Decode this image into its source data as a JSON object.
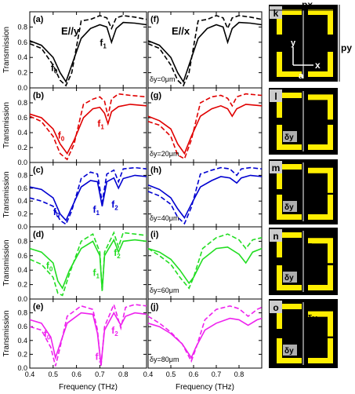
{
  "axis": {
    "ylabel": "Transmission",
    "xlabel": "Frequency (THz)",
    "yticks": [
      "0.8",
      "0.6",
      "0.4",
      "0.2",
      "0.0"
    ],
    "xticks_left": [
      "0.4",
      "0.5",
      "0.6",
      "0.7",
      "0.8"
    ],
    "xticks_right": [
      "0.4",
      "0.5",
      "0.6",
      "0.7",
      "0.8"
    ]
  },
  "legend": {
    "e_y": "E//y",
    "e_x": "E//x"
  },
  "rows": [
    {
      "label_left": "(a)",
      "label_right": "(f)",
      "delta": "δy=0μm",
      "color": "#000000",
      "res_left": [
        {
          "text": "f0",
          "sub": ""
        },
        {
          "text": "f1",
          "sub": ""
        }
      ]
    },
    {
      "label_left": "(b)",
      "label_right": "(g)",
      "delta": "δy=20μm",
      "color": "#e00000",
      "res_left": [
        {
          "text": "f0"
        },
        {
          "text": "f1"
        }
      ]
    },
    {
      "label_left": "(c)",
      "label_right": "(h)",
      "delta": "δy=40μm",
      "color": "#0000d0",
      "res_left": [
        {
          "text": "f0"
        },
        {
          "text": "f1"
        },
        {
          "text": "f2"
        }
      ]
    },
    {
      "label_left": "(d)",
      "label_right": "(i)",
      "delta": "δy=60μm",
      "color": "#22dd22",
      "res_left": [
        {
          "text": "f0"
        },
        {
          "text": "f1"
        },
        {
          "text": "f2"
        }
      ]
    },
    {
      "label_left": "(e)",
      "label_right": "(j)",
      "delta": "δy=80μm",
      "color": "#ee22ee",
      "res_left": [
        {
          "text": "f0"
        },
        {
          "text": "f1"
        },
        {
          "text": "f2"
        }
      ]
    }
  ],
  "unit_cells": [
    {
      "label": "k",
      "texts": {
        "px": "px",
        "py": "py",
        "a": "a",
        "x": "x",
        "y": "y"
      }
    },
    {
      "label": "l",
      "dy": "δy"
    },
    {
      "label": "m",
      "dy": "δy"
    },
    {
      "label": "n",
      "dy": "δy"
    },
    {
      "label": "o",
      "dy": "δy"
    }
  ],
  "chart_data": [
    {
      "type": "line",
      "title": "",
      "xlabel": "Frequency (THz)",
      "ylabel": "Transmission",
      "xlim": [
        0.4,
        0.9
      ],
      "ylim": [
        0.0,
        1.0
      ],
      "panels": [
        {
          "panel": "(a)",
          "polarization": "E//y",
          "delta_y": "δy=0μm",
          "series": [
            {
              "style": "solid",
              "x": [
                0.4,
                0.45,
                0.5,
                0.53,
                0.555,
                0.58,
                0.62,
                0.66,
                0.7,
                0.73,
                0.75,
                0.77,
                0.8,
                0.85,
                0.9
              ],
              "y": [
                0.62,
                0.56,
                0.4,
                0.2,
                0.08,
                0.3,
                0.65,
                0.78,
                0.83,
                0.8,
                0.6,
                0.78,
                0.86,
                0.85,
                0.83
              ]
            },
            {
              "style": "dashed",
              "x": [
                0.4,
                0.45,
                0.5,
                0.53,
                0.555,
                0.58,
                0.62,
                0.66,
                0.7,
                0.73,
                0.75,
                0.77,
                0.8,
                0.85,
                0.9
              ],
              "y": [
                0.58,
                0.52,
                0.3,
                0.1,
                0.03,
                0.2,
                0.88,
                0.9,
                0.95,
                0.92,
                0.78,
                0.92,
                0.95,
                0.93,
                0.9
              ]
            }
          ]
        },
        {
          "panel": "(b)",
          "polarization": "E//y",
          "delta_y": "δy=20μm",
          "series": [
            {
              "style": "solid",
              "x": [
                0.4,
                0.45,
                0.5,
                0.53,
                0.56,
                0.59,
                0.63,
                0.67,
                0.7,
                0.72,
                0.735,
                0.75,
                0.78,
                0.83,
                0.9
              ],
              "y": [
                0.65,
                0.6,
                0.45,
                0.25,
                0.12,
                0.3,
                0.6,
                0.72,
                0.74,
                0.66,
                0.52,
                0.68,
                0.75,
                0.78,
                0.76
              ]
            },
            {
              "style": "dashed",
              "x": [
                0.4,
                0.45,
                0.5,
                0.53,
                0.56,
                0.59,
                0.63,
                0.67,
                0.7,
                0.72,
                0.735,
                0.75,
                0.78,
                0.83,
                0.9
              ],
              "y": [
                0.62,
                0.55,
                0.35,
                0.12,
                0.04,
                0.25,
                0.78,
                0.85,
                0.88,
                0.82,
                0.62,
                0.85,
                0.92,
                0.9,
                0.88
              ]
            }
          ]
        },
        {
          "panel": "(c)",
          "polarization": "E//y",
          "delta_y": "δy=40μm",
          "series": [
            {
              "style": "solid",
              "x": [
                0.4,
                0.45,
                0.5,
                0.53,
                0.555,
                0.58,
                0.62,
                0.66,
                0.69,
                0.71,
                0.73,
                0.76,
                0.78,
                0.8,
                0.85,
                0.9
              ],
              "y": [
                0.62,
                0.58,
                0.45,
                0.2,
                0.1,
                0.3,
                0.62,
                0.72,
                0.7,
                0.32,
                0.7,
                0.76,
                0.6,
                0.75,
                0.8,
                0.78
              ]
            },
            {
              "style": "dashed",
              "x": [
                0.4,
                0.45,
                0.5,
                0.53,
                0.555,
                0.58,
                0.62,
                0.66,
                0.69,
                0.71,
                0.73,
                0.76,
                0.78,
                0.8,
                0.85,
                0.9
              ],
              "y": [
                0.45,
                0.4,
                0.32,
                0.1,
                0.04,
                0.25,
                0.75,
                0.85,
                0.82,
                0.38,
                0.82,
                0.88,
                0.7,
                0.9,
                0.92,
                0.9
              ]
            }
          ]
        },
        {
          "panel": "(d)",
          "polarization": "E//y",
          "delta_y": "δy=60μm",
          "series": [
            {
              "style": "solid",
              "x": [
                0.4,
                0.45,
                0.5,
                0.52,
                0.54,
                0.57,
                0.62,
                0.67,
                0.7,
                0.71,
                0.72,
                0.76,
                0.78,
                0.8,
                0.85,
                0.9
              ],
              "y": [
                0.7,
                0.65,
                0.5,
                0.25,
                0.15,
                0.4,
                0.7,
                0.8,
                0.6,
                0.12,
                0.6,
                0.82,
                0.65,
                0.8,
                0.82,
                0.8
              ]
            },
            {
              "style": "dashed",
              "x": [
                0.4,
                0.45,
                0.5,
                0.52,
                0.54,
                0.57,
                0.62,
                0.67,
                0.7,
                0.71,
                0.72,
                0.76,
                0.78,
                0.8,
                0.85,
                0.9
              ],
              "y": [
                0.55,
                0.48,
                0.3,
                0.08,
                0.05,
                0.35,
                0.8,
                0.9,
                0.65,
                0.1,
                0.65,
                0.92,
                0.72,
                0.92,
                0.9,
                0.88
              ]
            }
          ]
        },
        {
          "panel": "(e)",
          "polarization": "E//y",
          "delta_y": "δy=80μm",
          "series": [
            {
              "style": "solid",
              "x": [
                0.4,
                0.45,
                0.49,
                0.51,
                0.53,
                0.56,
                0.62,
                0.67,
                0.69,
                0.705,
                0.72,
                0.76,
                0.79,
                0.81,
                0.85,
                0.9
              ],
              "y": [
                0.7,
                0.65,
                0.45,
                0.15,
                0.35,
                0.65,
                0.8,
                0.78,
                0.5,
                0.05,
                0.55,
                0.8,
                0.62,
                0.75,
                0.8,
                0.78
              ]
            },
            {
              "style": "dashed",
              "x": [
                0.4,
                0.45,
                0.49,
                0.51,
                0.53,
                0.56,
                0.62,
                0.67,
                0.69,
                0.705,
                0.72,
                0.76,
                0.79,
                0.81,
                0.85,
                0.9
              ],
              "y": [
                0.6,
                0.55,
                0.3,
                0.03,
                0.3,
                0.75,
                0.9,
                0.85,
                0.55,
                0.02,
                0.6,
                0.92,
                0.58,
                0.88,
                0.92,
                0.9
              ]
            }
          ]
        },
        {
          "panel": "(f)",
          "polarization": "E//x",
          "delta_y": "δy=0μm",
          "series": [
            {
              "style": "solid",
              "x": [
                0.4,
                0.45,
                0.5,
                0.53,
                0.555,
                0.58,
                0.62,
                0.66,
                0.7,
                0.73,
                0.75,
                0.77,
                0.8,
                0.85,
                0.9
              ],
              "y": [
                0.62,
                0.56,
                0.4,
                0.2,
                0.08,
                0.3,
                0.65,
                0.78,
                0.83,
                0.8,
                0.6,
                0.78,
                0.86,
                0.85,
                0.83
              ]
            },
            {
              "style": "dashed",
              "x": [
                0.4,
                0.45,
                0.5,
                0.53,
                0.555,
                0.58,
                0.62,
                0.66,
                0.7,
                0.73,
                0.75,
                0.77,
                0.8,
                0.85,
                0.9
              ],
              "y": [
                0.58,
                0.52,
                0.3,
                0.1,
                0.03,
                0.2,
                0.88,
                0.9,
                0.95,
                0.92,
                0.78,
                0.92,
                0.95,
                0.93,
                0.9
              ]
            }
          ]
        },
        {
          "panel": "(g)",
          "polarization": "E//x",
          "delta_y": "δy=20μm",
          "series": [
            {
              "style": "solid",
              "x": [
                0.4,
                0.45,
                0.5,
                0.53,
                0.56,
                0.59,
                0.63,
                0.68,
                0.72,
                0.75,
                0.77,
                0.79,
                0.83,
                0.9
              ],
              "y": [
                0.62,
                0.56,
                0.45,
                0.25,
                0.12,
                0.35,
                0.62,
                0.72,
                0.76,
                0.72,
                0.62,
                0.72,
                0.78,
                0.76
              ]
            },
            {
              "style": "dashed",
              "x": [
                0.4,
                0.45,
                0.5,
                0.53,
                0.56,
                0.59,
                0.63,
                0.68,
                0.72,
                0.75,
                0.77,
                0.79,
                0.83,
                0.9
              ],
              "y": [
                0.55,
                0.5,
                0.35,
                0.1,
                0.05,
                0.3,
                0.8,
                0.88,
                0.9,
                0.86,
                0.76,
                0.88,
                0.92,
                0.9
              ]
            }
          ]
        },
        {
          "panel": "(h)",
          "polarization": "E//x",
          "delta_y": "δy=40μm",
          "series": [
            {
              "style": "solid",
              "x": [
                0.4,
                0.45,
                0.5,
                0.53,
                0.56,
                0.59,
                0.63,
                0.68,
                0.72,
                0.76,
                0.79,
                0.81,
                0.85,
                0.9
              ],
              "y": [
                0.65,
                0.58,
                0.45,
                0.28,
                0.14,
                0.35,
                0.62,
                0.72,
                0.78,
                0.76,
                0.68,
                0.76,
                0.8,
                0.78
              ]
            },
            {
              "style": "dashed",
              "x": [
                0.4,
                0.45,
                0.5,
                0.53,
                0.56,
                0.59,
                0.63,
                0.68,
                0.72,
                0.76,
                0.79,
                0.81,
                0.85,
                0.9
              ],
              "y": [
                0.55,
                0.48,
                0.35,
                0.15,
                0.05,
                0.3,
                0.82,
                0.88,
                0.92,
                0.9,
                0.8,
                0.9,
                0.92,
                0.9
              ]
            }
          ]
        },
        {
          "panel": "(i)",
          "polarization": "E//x",
          "delta_y": "δy=60μm",
          "series": [
            {
              "style": "solid",
              "x": [
                0.4,
                0.45,
                0.5,
                0.54,
                0.58,
                0.6,
                0.64,
                0.7,
                0.75,
                0.8,
                0.83,
                0.86,
                0.9
              ],
              "y": [
                0.7,
                0.65,
                0.55,
                0.4,
                0.22,
                0.3,
                0.55,
                0.7,
                0.72,
                0.62,
                0.5,
                0.65,
                0.7
              ]
            },
            {
              "style": "dashed",
              "x": [
                0.4,
                0.45,
                0.5,
                0.54,
                0.58,
                0.6,
                0.64,
                0.7,
                0.75,
                0.8,
                0.83,
                0.86,
                0.9
              ],
              "y": [
                0.7,
                0.6,
                0.48,
                0.3,
                0.15,
                0.3,
                0.7,
                0.85,
                0.9,
                0.82,
                0.7,
                0.82,
                0.85
              ]
            }
          ]
        },
        {
          "panel": "(j)",
          "polarization": "E//x",
          "delta_y": "δy=80μm",
          "series": [
            {
              "style": "solid",
              "x": [
                0.4,
                0.45,
                0.5,
                0.55,
                0.59,
                0.61,
                0.65,
                0.7,
                0.76,
                0.8,
                0.84,
                0.88,
                0.9
              ],
              "y": [
                0.65,
                0.6,
                0.5,
                0.35,
                0.15,
                0.3,
                0.55,
                0.65,
                0.72,
                0.7,
                0.62,
                0.7,
                0.72
              ]
            },
            {
              "style": "dashed",
              "x": [
                0.4,
                0.45,
                0.5,
                0.55,
                0.59,
                0.61,
                0.65,
                0.7,
                0.76,
                0.8,
                0.84,
                0.88,
                0.9
              ],
              "y": [
                0.75,
                0.65,
                0.52,
                0.35,
                0.1,
                0.28,
                0.7,
                0.85,
                0.9,
                0.86,
                0.75,
                0.85,
                0.88
              ]
            }
          ]
        }
      ]
    }
  ]
}
